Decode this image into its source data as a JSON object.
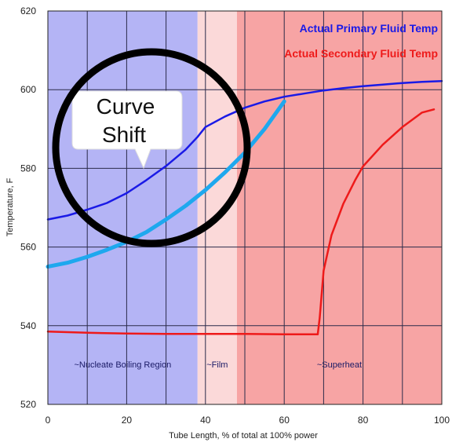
{
  "chart_data": {
    "type": "line",
    "title": "",
    "xlabel": "Tube Length, % of total at 100% power",
    "ylabel": "Temperature, F",
    "xlim": [
      0,
      100
    ],
    "ylim": [
      520,
      620
    ],
    "xticks": [
      0,
      20,
      40,
      60,
      80,
      100
    ],
    "yticks": [
      520,
      540,
      560,
      580,
      600,
      620
    ],
    "grid": true,
    "legend_position": "top-right",
    "regions": [
      {
        "label": "~Nucleate Boiling Region",
        "from": 0,
        "to": 38,
        "color": "#b4b4f5"
      },
      {
        "label": "~Film",
        "from": 38,
        "to": 48,
        "color": "#fbd9d9"
      },
      {
        "label": "~Superheat",
        "from": 48,
        "to": 100,
        "color": "#f7a4a4"
      }
    ],
    "series": [
      {
        "name": "Actual Primary Fluid Temp",
        "color": "#1a1ae6",
        "x": [
          0,
          5,
          10,
          15,
          20,
          25,
          30,
          35,
          38,
          40,
          45,
          50,
          55,
          60,
          65,
          70,
          75,
          80,
          85,
          90,
          95,
          100
        ],
        "y": [
          567,
          568,
          569.5,
          571.2,
          573.7,
          577,
          580.6,
          584.8,
          588,
          590.5,
          593.2,
          595.4,
          597,
          598.2,
          599,
          599.8,
          600.4,
          600.9,
          601.3,
          601.7,
          602,
          602.2
        ]
      },
      {
        "name": "",
        "color": "#1ea8ee",
        "x": [
          0,
          5,
          10,
          15,
          20,
          25,
          30,
          35,
          40,
          45,
          50,
          55,
          60
        ],
        "y": [
          555,
          556,
          557.5,
          559.3,
          561.3,
          563.8,
          567,
          570.5,
          574.5,
          579,
          584,
          590,
          597
        ]
      },
      {
        "name": "Actual Secondary Fluid Temp",
        "color": "#ee1a1a",
        "x": [
          0,
          10,
          20,
          30,
          40,
          50,
          60,
          68.5,
          69,
          70,
          72,
          75,
          78,
          80,
          85,
          90,
          95,
          98
        ],
        "y": [
          538.5,
          538.2,
          538,
          537.9,
          537.9,
          537.9,
          537.8,
          537.8,
          542,
          554,
          563,
          571,
          577,
          580.5,
          586,
          590.5,
          594.2,
          595
        ]
      }
    ],
    "annotations": [
      {
        "text_lines": [
          "Curve",
          "Shift"
        ],
        "type": "callout-circle"
      }
    ]
  }
}
